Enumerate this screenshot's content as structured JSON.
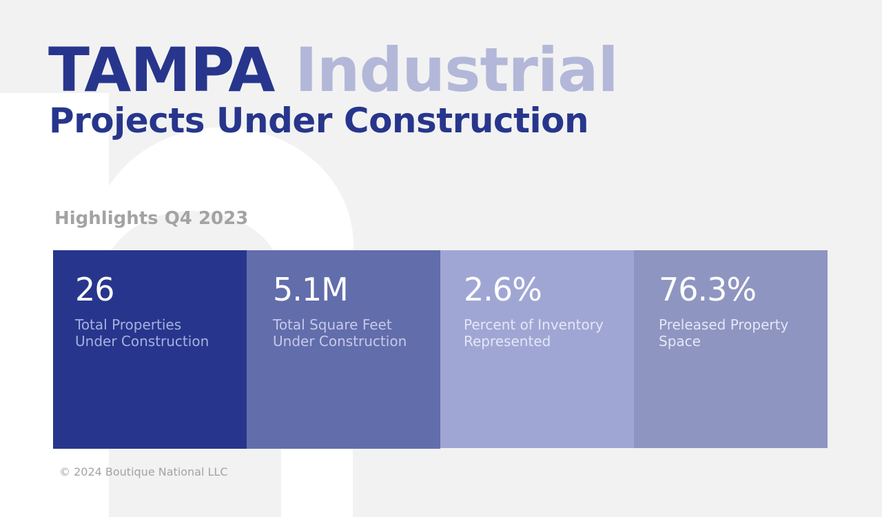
{
  "header": {
    "title_city": "TAMPA",
    "title_sector": "Industrial",
    "subtitle": "Projects Under Construction"
  },
  "highlights": {
    "heading": "Highlights Q4 2023",
    "cards": [
      {
        "value": "26",
        "label": "Total Properties\nUnder Construction"
      },
      {
        "value": "5.1M",
        "label": "Total Square Feet\nUnder Construction"
      },
      {
        "value": "2.6%",
        "label": "Percent of Inventory\nRepresented"
      },
      {
        "value": "76.3%",
        "label": "Preleased Property\nSpace"
      }
    ]
  },
  "footer": {
    "copyright": "© 2024 Boutique National LLC"
  },
  "colors": {
    "background": "#f2f2f2",
    "brand_dark": "#27368c",
    "brand_light": "#b3b8d9",
    "card_1": "#27368c",
    "card_2": "#626dab",
    "card_3": "#a0a6d4",
    "card_4": "#8e95c1",
    "muted_text": "#a3a3a3"
  }
}
